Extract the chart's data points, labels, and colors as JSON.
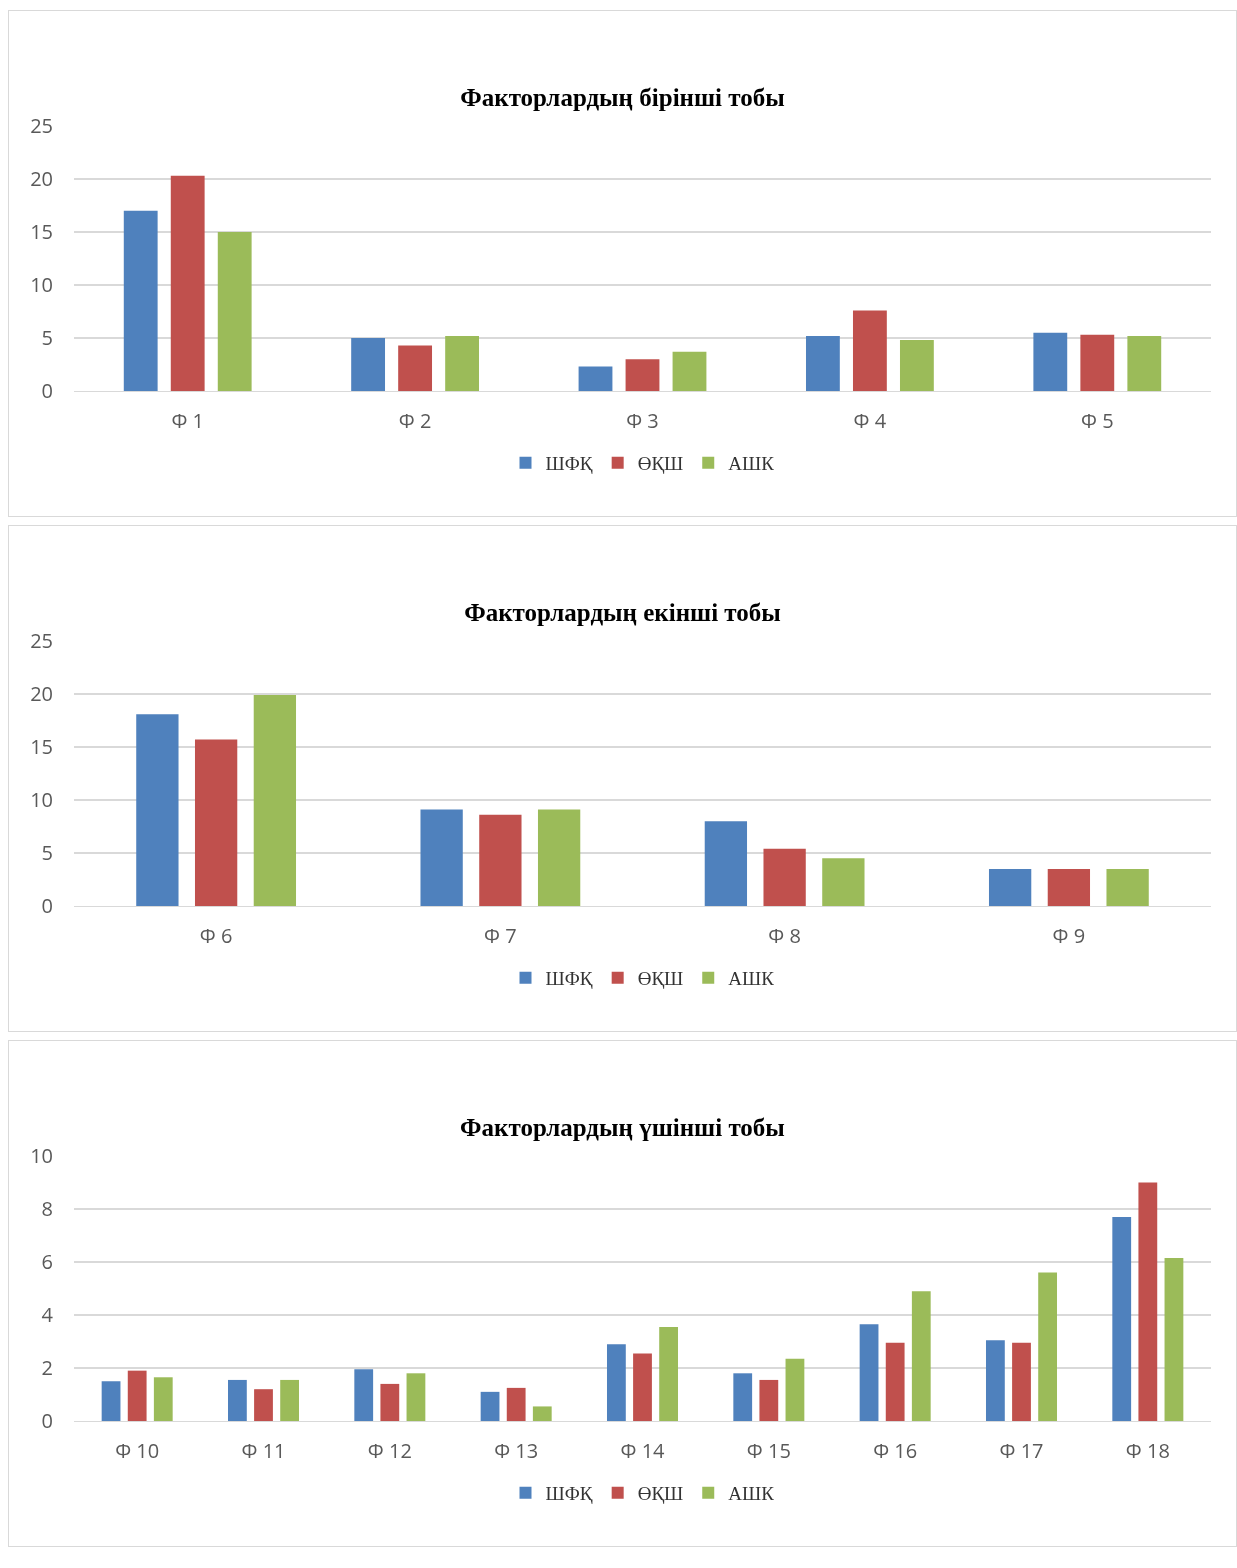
{
  "chart_data": [
    {
      "type": "bar",
      "title": "Факторлардың бірінші тобы",
      "categories": [
        "Ф 1",
        "Ф 2",
        "Ф 3",
        "Ф 4",
        "Ф 5"
      ],
      "ylim": [
        0,
        25
      ],
      "yticks": [
        0,
        5,
        10,
        15,
        20,
        25
      ],
      "grid": "y",
      "legend": "bottom",
      "series": [
        {
          "name": "ШФҚ",
          "color": "#4f81bd",
          "values": [
            17,
            5,
            2.3,
            5.2,
            5.5
          ]
        },
        {
          "name": "ӨҚШ",
          "color": "#c0504d",
          "values": [
            20.3,
            4.3,
            3,
            7.6,
            5.3
          ]
        },
        {
          "name": "АШК",
          "color": "#9bbb59",
          "values": [
            15,
            5.2,
            3.7,
            4.8,
            5.2
          ]
        }
      ]
    },
    {
      "type": "bar",
      "title": "Факторлардың екінші тобы",
      "categories": [
        "Ф 6",
        "Ф 7",
        "Ф 8",
        "Ф 9"
      ],
      "ylim": [
        0,
        25
      ],
      "yticks": [
        0,
        5,
        10,
        15,
        20,
        25
      ],
      "grid": "y",
      "legend": "bottom",
      "series": [
        {
          "name": "ШФҚ",
          "color": "#4f81bd",
          "values": [
            18.1,
            9.1,
            8,
            3.5
          ]
        },
        {
          "name": "ӨҚШ",
          "color": "#c0504d",
          "values": [
            15.7,
            8.6,
            5.4,
            3.5
          ]
        },
        {
          "name": "АШК",
          "color": "#9bbb59",
          "values": [
            19.9,
            9.1,
            4.5,
            3.5
          ]
        }
      ]
    },
    {
      "type": "bar",
      "title": "Факторлардың үшінші тобы",
      "categories": [
        "Ф 10",
        "Ф 11",
        "Ф 12",
        "Ф 13",
        "Ф 14",
        "Ф 15",
        "Ф 16",
        "Ф 17",
        "Ф 18"
      ],
      "ylim": [
        0,
        10
      ],
      "yticks": [
        0,
        2,
        4,
        6,
        8,
        10
      ],
      "grid": "y",
      "legend": "bottom",
      "series": [
        {
          "name": "ШФҚ",
          "color": "#4f81bd",
          "values": [
            1.5,
            1.55,
            1.95,
            1.1,
            2.9,
            1.8,
            3.65,
            3.05,
            7.7
          ]
        },
        {
          "name": "ӨҚШ",
          "color": "#c0504d",
          "values": [
            1.9,
            1.2,
            1.4,
            1.25,
            2.55,
            1.55,
            2.95,
            2.95,
            9
          ]
        },
        {
          "name": "АШК",
          "color": "#9bbb59",
          "values": [
            1.65,
            1.55,
            1.8,
            0.55,
            3.55,
            2.35,
            4.9,
            5.6,
            6.15
          ]
        }
      ]
    }
  ]
}
